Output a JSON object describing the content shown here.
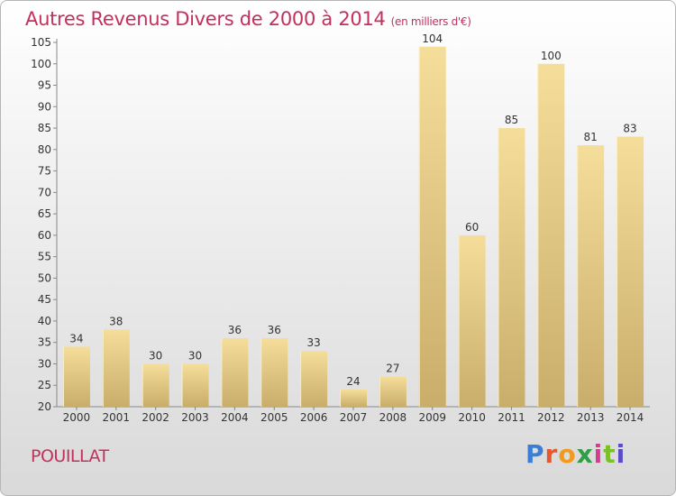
{
  "title": "Autres Revenus Divers de 2000 à 2014",
  "unit": "(en milliers d'€)",
  "commune": "POUILLAT",
  "logo": [
    "P",
    "r",
    "o",
    "x",
    "i",
    "t",
    "i"
  ],
  "colors": {
    "title": "#c4305e",
    "bar_light": "#f5dd9a",
    "bar_dark": "#c9ad6b",
    "axis": "#888888"
  },
  "chart_data": {
    "type": "bar",
    "categories": [
      "2000",
      "2001",
      "2002",
      "2003",
      "2004",
      "2005",
      "2006",
      "2007",
      "2008",
      "2009",
      "2010",
      "2011",
      "2012",
      "2013",
      "2014"
    ],
    "values": [
      34,
      38,
      30,
      30,
      36,
      36,
      33,
      24,
      27,
      104,
      60,
      85,
      100,
      81,
      83
    ],
    "ylim": [
      20,
      105
    ],
    "yticks": [
      20,
      25,
      30,
      35,
      40,
      45,
      50,
      55,
      60,
      65,
      70,
      75,
      80,
      85,
      90,
      95,
      100,
      105
    ],
    "grid": false,
    "legend": "none"
  }
}
